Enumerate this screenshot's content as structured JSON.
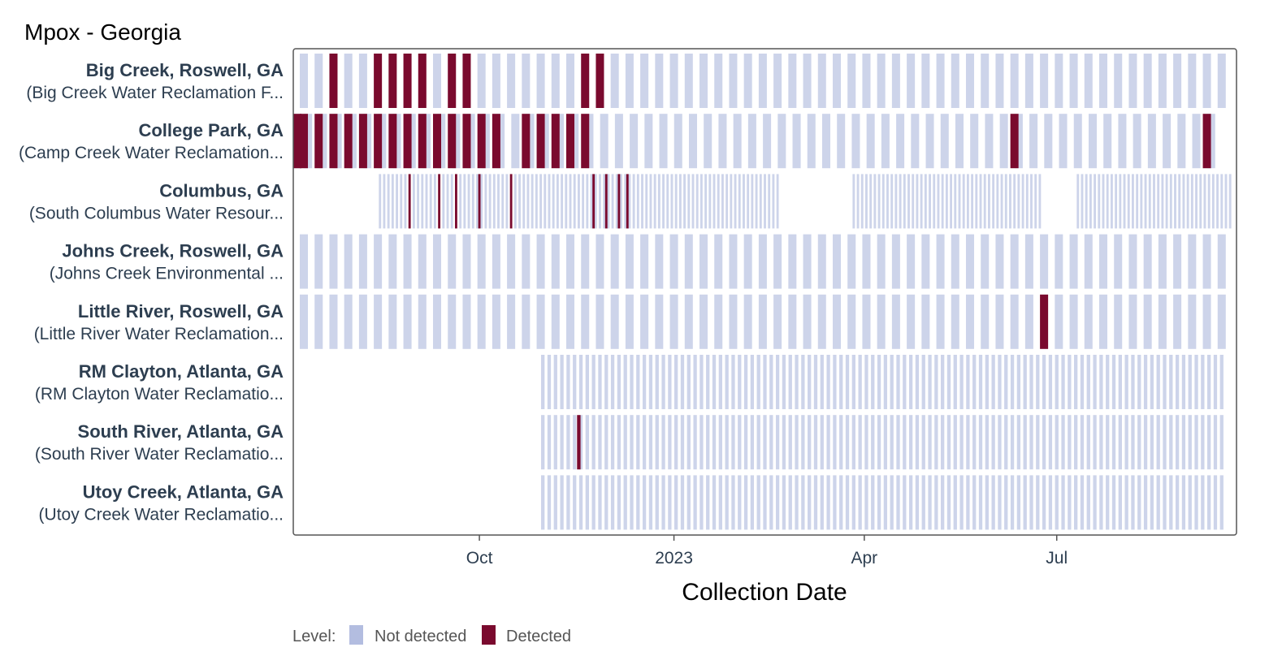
{
  "chart_data": {
    "type": "heatmap",
    "title": "Mpox - Georgia",
    "xlabel": "Collection Date",
    "ylabel": "",
    "x_ticks": [
      {
        "label": "Oct",
        "date": "2022-10-01"
      },
      {
        "label": "2023",
        "date": "2023-01-01"
      },
      {
        "label": "Apr",
        "date": "2023-04-01"
      },
      {
        "label": "Jul",
        "date": "2023-07-01"
      }
    ],
    "xlim": [
      "2022-07-05",
      "2023-09-24"
    ],
    "legend": {
      "title": "Level:",
      "placement": "bottom-left",
      "items": [
        {
          "label": "Not detected",
          "color": "#b3bde0"
        },
        {
          "label": "Detected",
          "color": "#7a0a2e"
        }
      ]
    },
    "colors": {
      "not_detected": "#cdd4ea",
      "detected": "#7a0a2e"
    },
    "series": [
      {
        "name": "Big Creek, Roswell, GA",
        "subtitle": "(Big Creek Water Reclamation F...",
        "start": "2022-07-10",
        "end": "2023-09-18",
        "interval_days": 7,
        "detected": [
          "2022-07-24",
          "2022-08-14",
          "2022-08-21",
          "2022-08-28",
          "2022-09-04",
          "2022-09-18",
          "2022-09-25",
          "2022-11-20",
          "2022-11-27"
        ]
      },
      {
        "name": "College Park, GA",
        "subtitle": "(Camp Creek Water Reclamation...",
        "start": "2022-07-05",
        "end": "2023-09-18",
        "interval_days": 7,
        "detected": [
          "2022-07-06",
          "2022-07-10",
          "2022-07-17",
          "2022-07-24",
          "2022-07-31",
          "2022-08-07",
          "2022-08-14",
          "2022-08-21",
          "2022-08-28",
          "2022-09-04",
          "2022-09-11",
          "2022-09-18",
          "2022-09-25",
          "2022-10-02",
          "2022-10-09",
          "2022-10-23",
          "2022-10-30",
          "2022-11-06",
          "2022-11-13",
          "2022-11-20",
          "2023-06-11",
          "2023-09-10"
        ]
      },
      {
        "name": "Columbus, GA",
        "subtitle": "(South Columbus Water Resour...",
        "start": "2022-08-15",
        "end": "2023-09-22",
        "interval_days": 2,
        "gaps": [
          [
            "2023-02-20",
            "2023-03-25"
          ],
          [
            "2023-06-25",
            "2023-07-10"
          ]
        ],
        "detected": [
          "2022-08-29",
          "2022-09-12",
          "2022-09-20",
          "2022-10-01",
          "2022-10-16",
          "2022-11-24",
          "2022-11-30",
          "2022-12-06",
          "2022-12-10"
        ]
      },
      {
        "name": "Johns Creek, Roswell, GA",
        "subtitle": "(Johns Creek Environmental ...",
        "start": "2022-07-10",
        "end": "2023-09-18",
        "interval_days": 7,
        "detected": []
      },
      {
        "name": "Little River, Roswell, GA",
        "subtitle": "(Little River Water Reclamation...",
        "start": "2022-07-10",
        "end": "2023-09-18",
        "interval_days": 7,
        "detected": [
          "2023-06-25"
        ]
      },
      {
        "name": "RM Clayton, Atlanta, GA",
        "subtitle": "(RM Clayton Water Reclamatio...",
        "start": "2022-10-31",
        "end": "2023-09-18",
        "interval_days": 3,
        "detected": []
      },
      {
        "name": "South River, Atlanta, GA",
        "subtitle": "(South River Water Reclamatio...",
        "start": "2022-10-31",
        "end": "2023-09-18",
        "interval_days": 3,
        "detected": [
          "2022-11-17"
        ]
      },
      {
        "name": "Utoy Creek, Atlanta, GA",
        "subtitle": "(Utoy Creek Water Reclamatio...",
        "start": "2022-10-31",
        "end": "2023-09-18",
        "interval_days": 3,
        "detected": []
      }
    ]
  }
}
